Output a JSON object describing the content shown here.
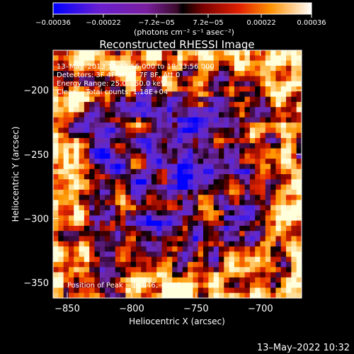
{
  "chart_data": {
    "type": "heatmap",
    "title": "Reconstructed RHESSI Image",
    "xlabel": "Heliocentric X (arcsec)",
    "ylabel": "Heliocentric Y (arcsec)",
    "xlim": [
      -861,
      -668
    ],
    "ylim": [
      -362,
      -169
    ],
    "x_ticks": [
      -850,
      -800,
      -750,
      -700
    ],
    "x_tick_labels": [
      "−850",
      "−800",
      "−750",
      "−700"
    ],
    "y_ticks": [
      -200,
      -250,
      -300,
      -350
    ],
    "y_tick_labels": [
      "−200",
      "−250",
      "−300",
      "−350"
    ],
    "colorbar": {
      "range": [
        -0.00036,
        0.00036
      ],
      "ticks": [
        -0.00036,
        -0.00022,
        -7.2e-05,
        7.2e-05,
        0.00022,
        0.00036
      ],
      "tick_labels": [
        "−0.00036",
        "−0.00022",
        "−7.2e−05",
        "7.2e−05",
        "0.00022",
        "0.00036"
      ],
      "unit_label": "(photons cm⁻² s⁻¹ asec⁻²)"
    },
    "annotations": {
      "time": "13–May–2013 18:27:56.000 to 18:33:56.000",
      "detectors": "Detectors: 3F 4F 5F 6F 7F 8F, Att 0",
      "energy": "Energy Range: 25.0 – 50.0 keV",
      "method": "Clean    Total counts: 1.18E+04",
      "peak": "Position of Peak = [−846,−190]"
    },
    "footer_timestamp": "13–May–2022 10:32",
    "grid_size": [
      48,
      48
    ],
    "colors": {
      "cold": "#1010ff",
      "mid": "#2a0030",
      "hot": "#ff4a00",
      "peak": "#ffffc0"
    }
  }
}
